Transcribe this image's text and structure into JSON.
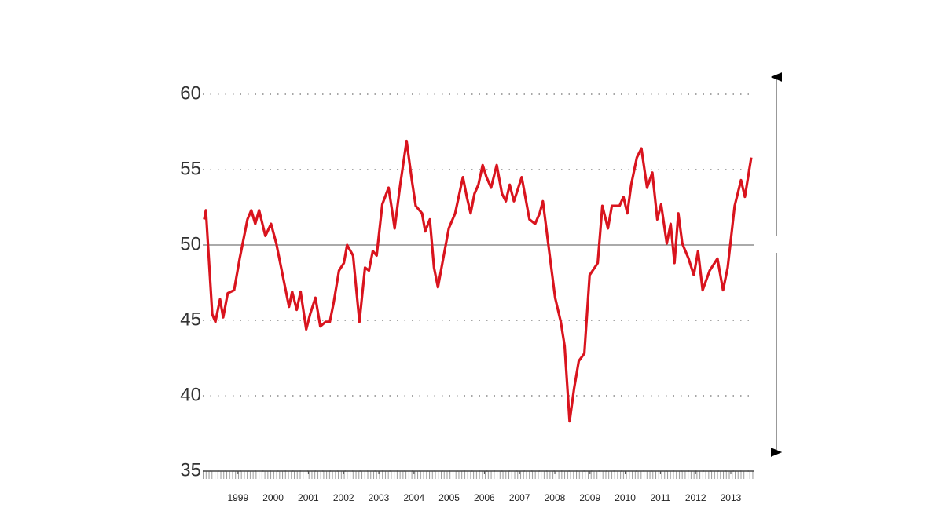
{
  "chart_data": {
    "type": "line",
    "x": [
      1998.54,
      1998.59,
      1998.77,
      1998.86,
      1998.99,
      1999.08,
      1999.21,
      1999.39,
      1999.55,
      1999.77,
      1999.88,
      1999.99,
      2000.1,
      2000.28,
      2000.44,
      2000.59,
      2000.77,
      2000.95,
      2001.04,
      2001.17,
      2001.28,
      2001.44,
      2001.55,
      2001.7,
      2001.84,
      2001.99,
      2002.11,
      2002.22,
      2002.37,
      2002.51,
      2002.6,
      2002.77,
      2002.95,
      2003.11,
      2003.22,
      2003.33,
      2003.44,
      2003.6,
      2003.78,
      2003.89,
      2003.95,
      2004.11,
      2004.29,
      2004.44,
      2004.55,
      2004.73,
      2004.82,
      2004.95,
      2005.07,
      2005.18,
      2005.33,
      2005.49,
      2005.67,
      2005.89,
      2006.0,
      2006.11,
      2006.22,
      2006.33,
      2006.45,
      2006.56,
      2006.69,
      2006.85,
      2007.0,
      2007.11,
      2007.22,
      2007.34,
      2007.56,
      2007.78,
      2007.94,
      2008.07,
      2008.16,
      2008.34,
      2008.51,
      2008.67,
      2008.78,
      2008.92,
      2009.05,
      2009.18,
      2009.34,
      2009.49,
      2009.72,
      2009.85,
      2010.01,
      2010.12,
      2010.34,
      2010.45,
      2010.56,
      2010.67,
      2010.83,
      2010.96,
      2011.12,
      2011.27,
      2011.41,
      2011.52,
      2011.68,
      2011.79,
      2011.9,
      2012.01,
      2012.12,
      2012.3,
      2012.45,
      2012.57,
      2012.7,
      2012.9,
      2013.12,
      2013.28,
      2013.41,
      2013.61,
      2013.79,
      2013.9,
      2014.08
    ],
    "series": [
      {
        "color": "#d9141e",
        "values": [
          51.7,
          52.3,
          45.4,
          44.9,
          46.4,
          45.2,
          46.8,
          47.0,
          49.1,
          51.7,
          52.3,
          51.4,
          52.3,
          50.6,
          51.4,
          50.1,
          48.0,
          45.9,
          46.9,
          45.7,
          46.9,
          44.4,
          45.4,
          46.5,
          44.6,
          44.9,
          44.9,
          46.2,
          48.3,
          48.8,
          50.0,
          49.3,
          44.9,
          48.5,
          48.3,
          49.6,
          49.3,
          52.7,
          53.8,
          52.1,
          51.1,
          54.0,
          56.9,
          54.3,
          52.6,
          52.1,
          50.9,
          51.7,
          48.5,
          47.2,
          49.1,
          51.1,
          52.1,
          54.5,
          53.2,
          52.1,
          53.4,
          54.0,
          55.3,
          54.5,
          53.8,
          55.3,
          53.4,
          52.9,
          54.0,
          52.9,
          54.5,
          51.7,
          51.4,
          52.1,
          52.9,
          49.6,
          46.5,
          44.9,
          43.3,
          38.3,
          40.5,
          42.3,
          42.8,
          48.0,
          48.8,
          52.6,
          51.1,
          52.6,
          52.6,
          53.2,
          52.1,
          54.0,
          55.8,
          56.4,
          53.8,
          54.8,
          51.7,
          52.7,
          50.1,
          51.4,
          48.8,
          52.1,
          50.1,
          49.1,
          48.0,
          49.6,
          47.0,
          48.3,
          49.1,
          47.0,
          48.5,
          52.6,
          54.3,
          53.2,
          55.8
        ]
      }
    ],
    "xlim": [
      1998.5,
      2014.17
    ],
    "xticks": [
      {
        "value": 1999.5,
        "label": "1999"
      },
      {
        "value": 2000.5,
        "label": "2000"
      },
      {
        "value": 2001.5,
        "label": "2001"
      },
      {
        "value": 2002.5,
        "label": "2002"
      },
      {
        "value": 2003.5,
        "label": "2003"
      },
      {
        "value": 2004.5,
        "label": "2004"
      },
      {
        "value": 2005.5,
        "label": "2005"
      },
      {
        "value": 2006.5,
        "label": "2006"
      },
      {
        "value": 2007.5,
        "label": "2007"
      },
      {
        "value": 2008.5,
        "label": "2008"
      },
      {
        "value": 2009.5,
        "label": "2009"
      },
      {
        "value": 2010.5,
        "label": "2010"
      },
      {
        "value": 2011.5,
        "label": "2011"
      },
      {
        "value": 2012.5,
        "label": "2012"
      },
      {
        "value": 2013.5,
        "label": "2013"
      }
    ],
    "ylim": [
      35,
      60
    ],
    "yticks": [
      35,
      40,
      45,
      50,
      55,
      60
    ],
    "grid": true,
    "hline": 50
  }
}
